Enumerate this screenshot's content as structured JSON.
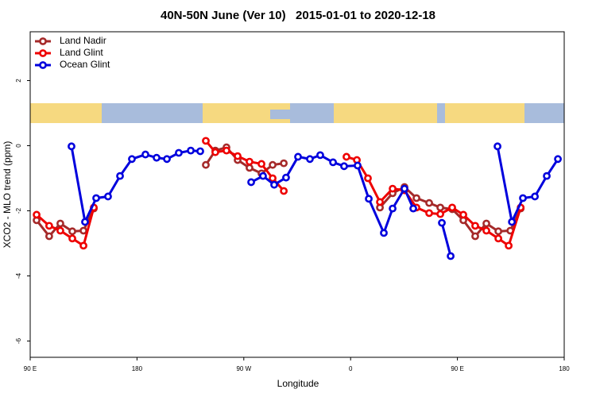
{
  "chart_data": {
    "type": "line",
    "title": "40N-50N June (Ver 10)   2015-01-01 to 2020-12-18",
    "xlabel": "Longitude",
    "ylabel": "XCO2 - MLO trend (ppm)",
    "xlim": [
      90,
      540
    ],
    "ylim": [
      -6.5,
      3.5
    ],
    "xticks": [
      {
        "value": 90,
        "label": "90 E"
      },
      180,
      {
        "value": 270,
        "label": "90 W"
      },
      {
        "value": 360,
        "label": "0"
      },
      {
        "value": 450,
        "label": "90 E"
      },
      {
        "value": 540,
        "label": "180"
      }
    ],
    "yticks": [
      -6,
      -4,
      -2,
      0,
      2
    ],
    "legend": "top-left",
    "series": [
      {
        "name": "Land Nadir",
        "color": "#a52a2a",
        "x": [
          95.4,
          106,
          115.4,
          125.5,
          134.9,
          143.6,
          null,
          238,
          246,
          255.4,
          264.8,
          274.8,
          284.9,
          294.3,
          303.7,
          null,
          384.7,
          395.4,
          405.4,
          415.5,
          426.2,
          435.6,
          445.6,
          455,
          465,
          474.4,
          484.5,
          494.6,
          503.3
        ],
        "values": [
          -2.29,
          -2.78,
          -2.39,
          -2.63,
          -2.61,
          -1.93,
          null,
          -0.59,
          -0.15,
          -0.05,
          -0.44,
          -0.68,
          -0.85,
          -0.59,
          -0.54,
          null,
          -1.9,
          -1.46,
          -1.27,
          -1.61,
          -1.76,
          -1.9,
          -1.95,
          -2.29,
          -2.78,
          -2.39,
          -2.63,
          -2.61,
          -1.93
        ]
      },
      {
        "name": "Land Glint",
        "color": "#ee0000",
        "x": [
          95.4,
          106,
          115.4,
          125.5,
          134.9,
          143.6,
          null,
          238,
          246,
          255.4,
          264.8,
          274.8,
          284.9,
          294.3,
          303.7,
          null,
          356.5,
          365.3,
          374.6,
          384.7,
          395.4,
          405.4,
          415.5,
          426.2,
          435.6,
          445.6,
          455,
          465,
          474.4,
          484.5,
          493.2,
          503.3
        ],
        "values": [
          -2.12,
          -2.46,
          -2.61,
          -2.85,
          -3.07,
          -1.9,
          null,
          0.15,
          -0.2,
          -0.15,
          -0.32,
          -0.49,
          -0.56,
          -1,
          -1.39,
          null,
          -0.34,
          -0.44,
          -1,
          -1.73,
          -1.32,
          -1.37,
          -1.9,
          -2.07,
          -2.1,
          -1.9,
          -2.12,
          -2.46,
          -2.61,
          -2.85,
          -3.07,
          -1.9
        ]
      },
      {
        "name": "Ocean Glint",
        "color": "#0000dd",
        "x": [
          124.8,
          136.2,
          145.6,
          155.6,
          165.7,
          175.7,
          187.1,
          196.5,
          205.2,
          215.2,
          225.3,
          233.3,
          null,
          276.2,
          286.2,
          295.6,
          305.6,
          315.7,
          325.7,
          334.4,
          345.2,
          354.5,
          365.9,
          375.3,
          388,
          395.4,
          405.4,
          412.8,
          null,
          436.9,
          444.3,
          null,
          483.8,
          495.9,
          505.2,
          515.3,
          525.3,
          534.7
        ],
        "values": [
          -0.02,
          -2.34,
          -1.61,
          -1.56,
          -0.93,
          -0.41,
          -0.27,
          -0.37,
          -0.41,
          -0.22,
          -0.15,
          -0.17,
          null,
          -1.12,
          -0.93,
          -1.2,
          -0.98,
          -0.34,
          -0.41,
          -0.29,
          -0.51,
          -0.63,
          -0.61,
          -1.63,
          -2.68,
          -1.93,
          -1.32,
          -1.93,
          null,
          -2.37,
          -3.39,
          null,
          -0.02,
          -2.34,
          -1.61,
          -1.56,
          -0.93,
          -0.41
        ]
      }
    ]
  }
}
